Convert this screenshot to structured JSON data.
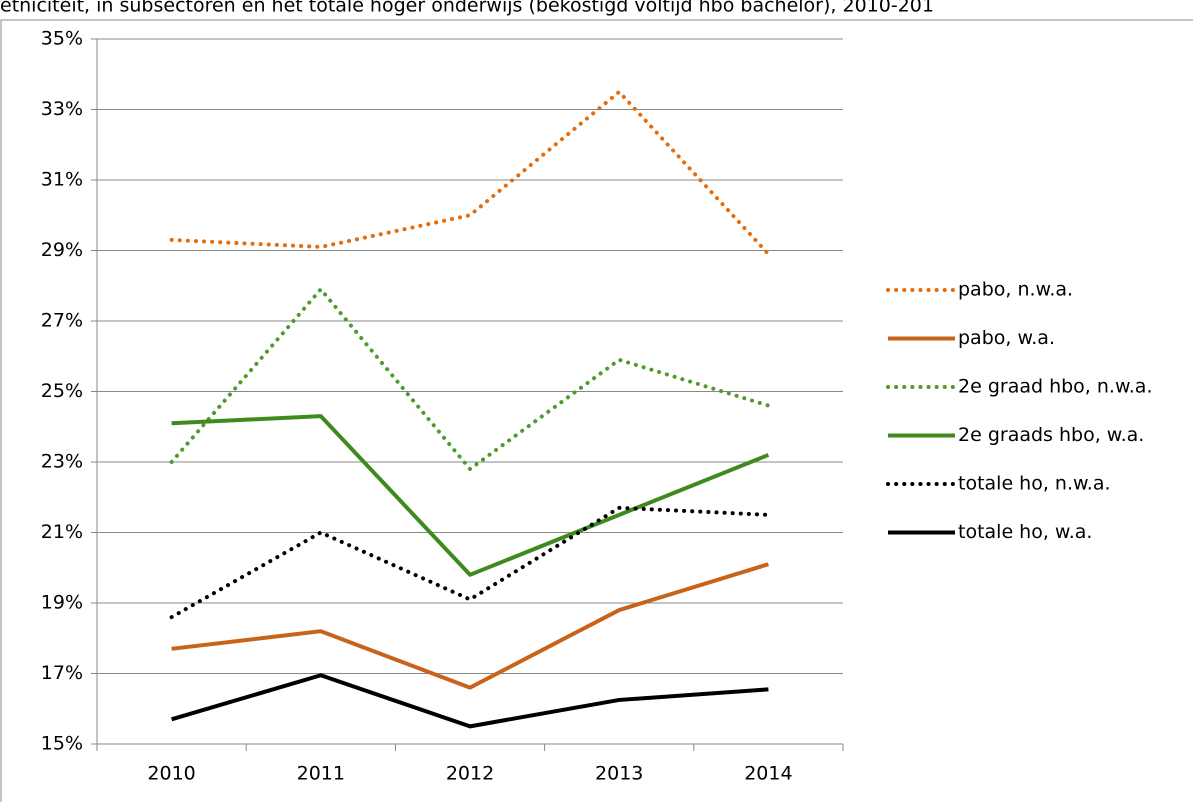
{
  "chart_data": {
    "type": "line",
    "title": "etniciteit, in subsectoren en het totale hoger onderwijs (bekostigd voltijd hbo bachelor), 2010-201",
    "categories": [
      "2010",
      "2011",
      "2012",
      "2013",
      "2014"
    ],
    "ylim": [
      15,
      35
    ],
    "yticks": [
      {
        "value": 15,
        "label": "15%"
      },
      {
        "value": 17,
        "label": "17%"
      },
      {
        "value": 19,
        "label": "19%"
      },
      {
        "value": 21,
        "label": "21%"
      },
      {
        "value": 23,
        "label": "23%"
      },
      {
        "value": 25,
        "label": "25%"
      },
      {
        "value": 27,
        "label": "27%"
      },
      {
        "value": 29,
        "label": "29%"
      },
      {
        "value": 31,
        "label": "31%"
      },
      {
        "value": 33,
        "label": "33%"
      },
      {
        "value": 35,
        "label": "35%"
      }
    ],
    "grid": true,
    "legend": "right",
    "series": [
      {
        "name": "pabo, n.w.a.",
        "color": "#e46c0a",
        "style": "dotted",
        "values": [
          29.3,
          29.1,
          30.0,
          33.5,
          28.9
        ]
      },
      {
        "name": "pabo, w.a.",
        "color": "#c8641a",
        "style": "solid",
        "values": [
          17.7,
          18.2,
          16.6,
          18.8,
          20.1
        ]
      },
      {
        "name": "2e graad hbo, n.w.a.",
        "color": "#4e9a2a",
        "style": "dotted",
        "values": [
          23.0,
          27.9,
          22.8,
          25.9,
          24.6
        ]
      },
      {
        "name": "2e graads hbo, w.a.",
        "color": "#3f8a1f",
        "style": "solid",
        "values": [
          24.1,
          24.3,
          19.8,
          21.5,
          23.2
        ]
      },
      {
        "name": "totale ho, n.w.a.",
        "color": "#000000",
        "style": "dotted",
        "values": [
          18.6,
          21.0,
          19.1,
          21.7,
          21.5
        ]
      },
      {
        "name": "totale ho, w.a.",
        "color": "#000000",
        "style": "solid",
        "values": [
          15.7,
          16.95,
          15.5,
          16.25,
          16.55
        ]
      }
    ]
  }
}
